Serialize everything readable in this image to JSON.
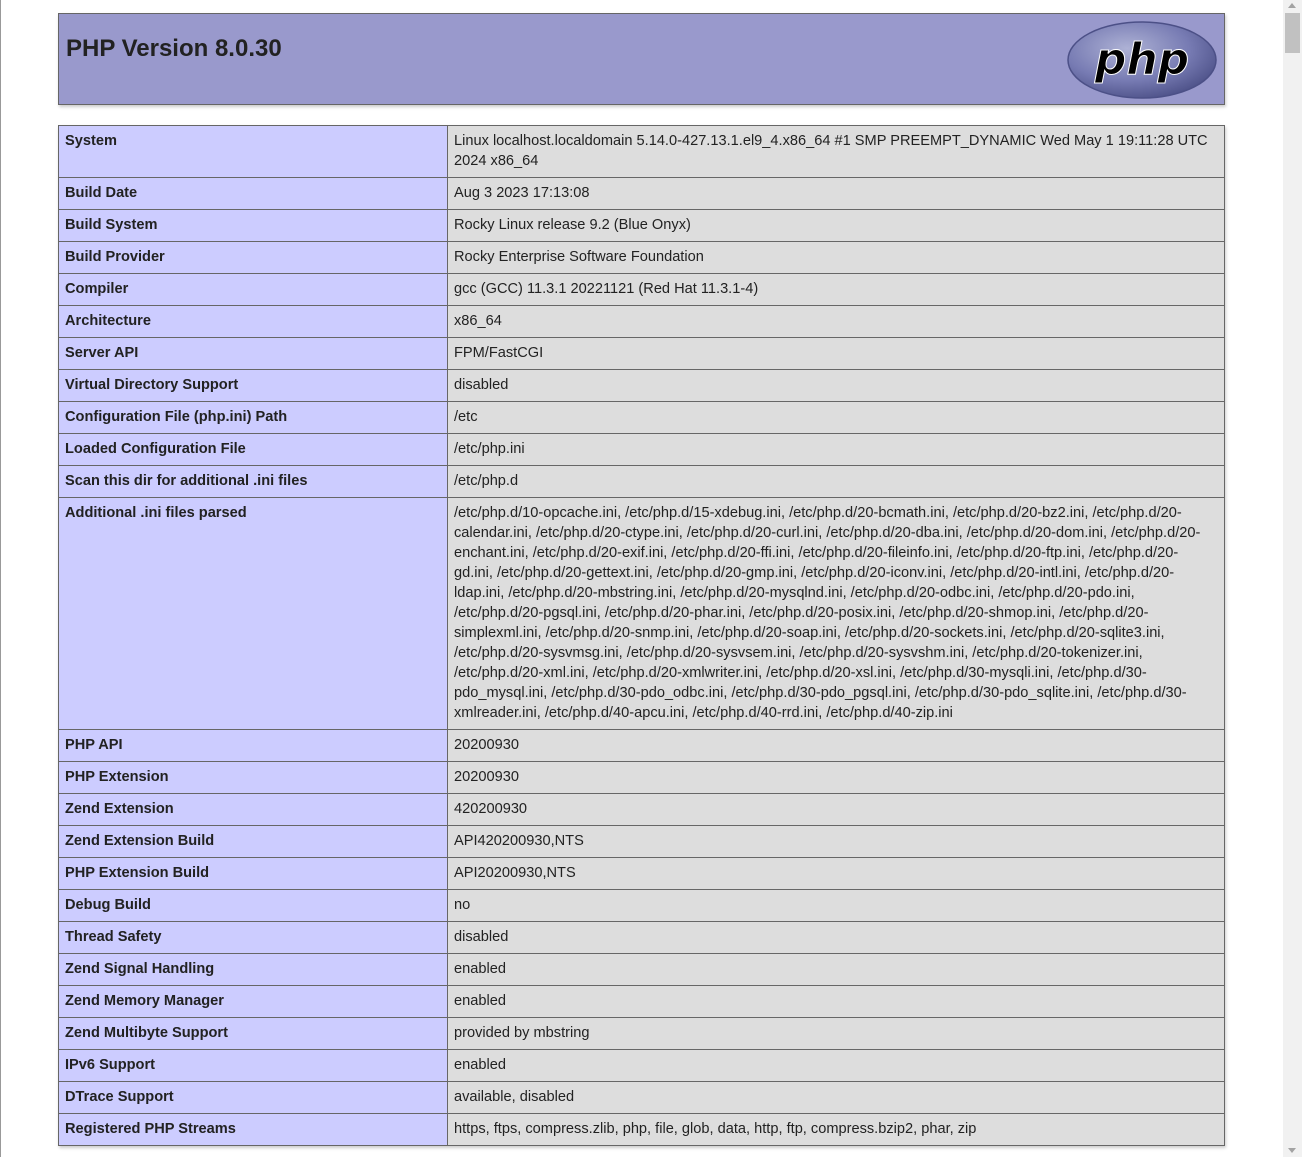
{
  "header": {
    "title": "PHP Version 8.0.30",
    "logo_text": "php"
  },
  "rows": [
    {
      "key": "System",
      "value": "Linux localhost.localdomain 5.14.0-427.13.1.el9_4.x86_64 #1 SMP PREEMPT_DYNAMIC Wed May 1 19:11:28 UTC 2024 x86_64"
    },
    {
      "key": "Build Date",
      "value": "Aug 3 2023 17:13:08"
    },
    {
      "key": "Build System",
      "value": "Rocky Linux release 9.2 (Blue Onyx)"
    },
    {
      "key": "Build Provider",
      "value": "Rocky Enterprise Software Foundation"
    },
    {
      "key": "Compiler",
      "value": "gcc (GCC) 11.3.1 20221121 (Red Hat 11.3.1-4)"
    },
    {
      "key": "Architecture",
      "value": "x86_64"
    },
    {
      "key": "Server API",
      "value": "FPM/FastCGI"
    },
    {
      "key": "Virtual Directory Support",
      "value": "disabled"
    },
    {
      "key": "Configuration File (php.ini) Path",
      "value": "/etc"
    },
    {
      "key": "Loaded Configuration File",
      "value": "/etc/php.ini"
    },
    {
      "key": "Scan this dir for additional .ini files",
      "value": "/etc/php.d"
    },
    {
      "key": "Additional .ini files parsed",
      "value": "/etc/php.d/10-opcache.ini, /etc/php.d/15-xdebug.ini, /etc/php.d/20-bcmath.ini, /etc/php.d/20-bz2.ini, /etc/php.d/20-calendar.ini, /etc/php.d/20-ctype.ini, /etc/php.d/20-curl.ini, /etc/php.d/20-dba.ini, /etc/php.d/20-dom.ini, /etc/php.d/20-enchant.ini, /etc/php.d/20-exif.ini, /etc/php.d/20-ffi.ini, /etc/php.d/20-fileinfo.ini, /etc/php.d/20-ftp.ini, /etc/php.d/20-gd.ini, /etc/php.d/20-gettext.ini, /etc/php.d/20-gmp.ini, /etc/php.d/20-iconv.ini, /etc/php.d/20-intl.ini, /etc/php.d/20-ldap.ini, /etc/php.d/20-mbstring.ini, /etc/php.d/20-mysqlnd.ini, /etc/php.d/20-odbc.ini, /etc/php.d/20-pdo.ini, /etc/php.d/20-pgsql.ini, /etc/php.d/20-phar.ini, /etc/php.d/20-posix.ini, /etc/php.d/20-shmop.ini, /etc/php.d/20-simplexml.ini, /etc/php.d/20-snmp.ini, /etc/php.d/20-soap.ini, /etc/php.d/20-sockets.ini, /etc/php.d/20-sqlite3.ini, /etc/php.d/20-sysvmsg.ini, /etc/php.d/20-sysvsem.ini, /etc/php.d/20-sysvshm.ini, /etc/php.d/20-tokenizer.ini, /etc/php.d/20-xml.ini, /etc/php.d/20-xmlwriter.ini, /etc/php.d/20-xsl.ini, /etc/php.d/30-mysqli.ini, /etc/php.d/30-pdo_mysql.ini, /etc/php.d/30-pdo_odbc.ini, /etc/php.d/30-pdo_pgsql.ini, /etc/php.d/30-pdo_sqlite.ini, /etc/php.d/30-xmlreader.ini, /etc/php.d/40-apcu.ini, /etc/php.d/40-rrd.ini, /etc/php.d/40-zip.ini"
    },
    {
      "key": "PHP API",
      "value": "20200930"
    },
    {
      "key": "PHP Extension",
      "value": "20200930"
    },
    {
      "key": "Zend Extension",
      "value": "420200930"
    },
    {
      "key": "Zend Extension Build",
      "value": "API420200930,NTS"
    },
    {
      "key": "PHP Extension Build",
      "value": "API20200930,NTS"
    },
    {
      "key": "Debug Build",
      "value": "no"
    },
    {
      "key": "Thread Safety",
      "value": "disabled"
    },
    {
      "key": "Zend Signal Handling",
      "value": "enabled"
    },
    {
      "key": "Zend Memory Manager",
      "value": "enabled"
    },
    {
      "key": "Zend Multibyte Support",
      "value": "provided by mbstring"
    },
    {
      "key": "IPv6 Support",
      "value": "enabled"
    },
    {
      "key": "DTrace Support",
      "value": "available, disabled"
    },
    {
      "key": "Registered PHP Streams",
      "value": "https, ftps, compress.zlib, php, file, glob, data, http, ftp, compress.bzip2, phar, zip"
    }
  ]
}
